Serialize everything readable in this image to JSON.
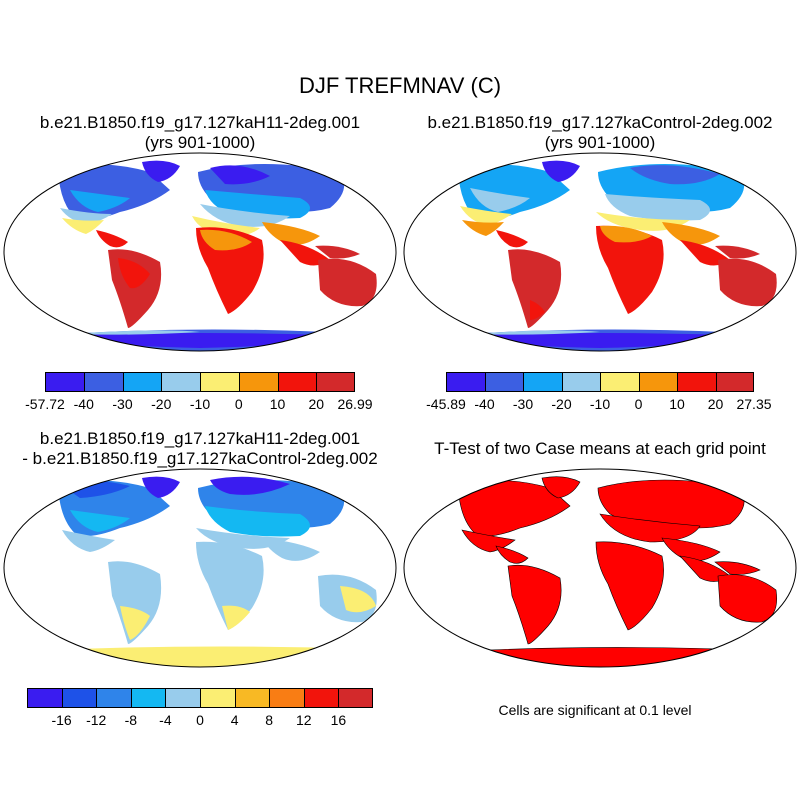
{
  "title": "DJF TREFMNAV (C)",
  "panels": [
    {
      "title_line1": "b.e21.B1850.f19_g17.127kaH11-2deg.001",
      "title_line2": "(yrs 901-1000)",
      "colorbar": {
        "colors": [
          "#3a1cf0",
          "#3c5fe2",
          "#14a5f5",
          "#98ccec",
          "#fbee73",
          "#f6960c",
          "#f2140c",
          "#d3292b"
        ],
        "labels": [
          "-57.72",
          "-40",
          "-30",
          "-20",
          "-10",
          "0",
          "10",
          "20",
          "26.99"
        ]
      }
    },
    {
      "title_line1": "b.e21.B1850.f19_g17.127kaControl-2deg.002",
      "title_line2": "(yrs 901-1000)",
      "colorbar": {
        "colors": [
          "#3a1cf0",
          "#3c5fe2",
          "#14a5f5",
          "#98ccec",
          "#fbee73",
          "#f6960c",
          "#f2140c",
          "#d3292b"
        ],
        "labels": [
          "-45.89",
          "-40",
          "-30",
          "-20",
          "-10",
          "0",
          "10",
          "20",
          "27.35"
        ]
      }
    },
    {
      "title_line1": "b.e21.B1850.f19_g17.127kaH11-2deg.001",
      "title_line2": "- b.e21.B1850.f19_g17.127kaControl-2deg.002",
      "colorbar": {
        "colors": [
          "#3a1cf0",
          "#1e52e8",
          "#2f84ea",
          "#14b8f2",
          "#98ccec",
          "#fbee73",
          "#f8b924",
          "#f97d14",
          "#f2140c",
          "#d3292b"
        ],
        "labels": [
          "-16",
          "-12",
          "-8",
          "-4",
          "0",
          "4",
          "8",
          "12",
          "16"
        ]
      }
    },
    {
      "title_line1": "T-Test of two Case means at each grid point",
      "note": "Cells are significant at 0.1 level"
    }
  ]
}
